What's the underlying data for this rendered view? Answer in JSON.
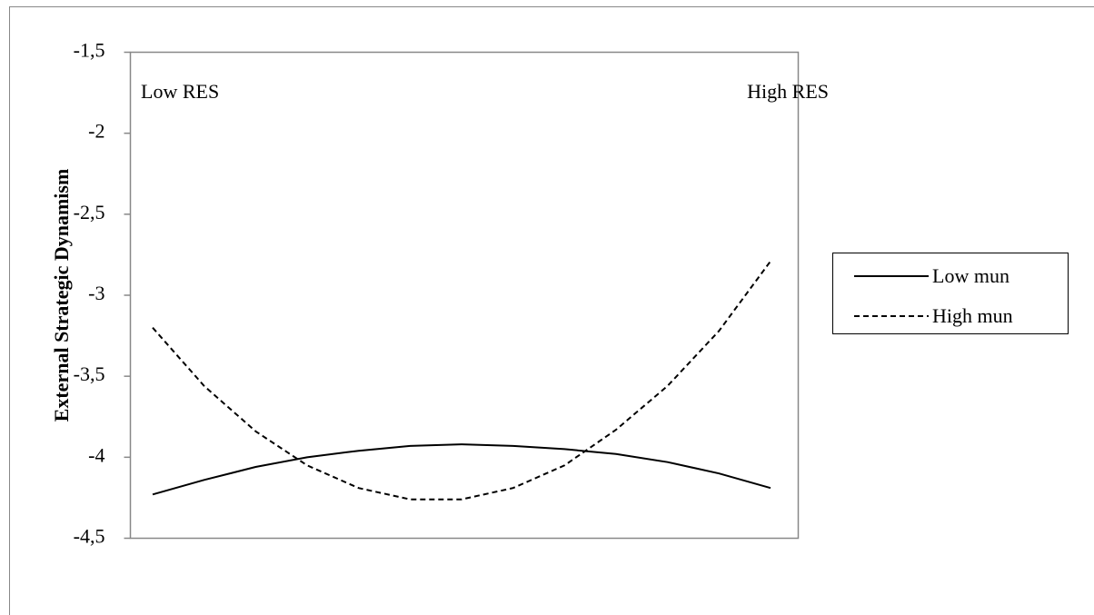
{
  "chart_data": {
    "type": "line",
    "y_label": "External Strategic Dynamism",
    "annotations": [
      "Low RES",
      "High RES"
    ],
    "categories": [
      null,
      null,
      null,
      null,
      null,
      null,
      null,
      null,
      null,
      null,
      null,
      null,
      null
    ],
    "series": [
      {
        "name": "Low mun",
        "color": "#000000",
        "dash": "solid",
        "values": [
          -4.23,
          -4.14,
          -4.06,
          -4.0,
          -3.96,
          -3.93,
          -3.92,
          -3.93,
          -3.95,
          -3.98,
          -4.03,
          -4.1,
          -4.19
        ]
      },
      {
        "name": "High mun",
        "color": "#000000",
        "dash": "dashed",
        "values": [
          -3.2,
          -3.56,
          -3.84,
          -4.05,
          -4.19,
          -4.26,
          -4.26,
          -4.19,
          -4.05,
          -3.83,
          -3.56,
          -3.22,
          -2.79
        ]
      }
    ],
    "ylim": [
      -4.5,
      -1.5
    ],
    "yticks": [
      {
        "value": -4.5,
        "label": "-4,5"
      },
      {
        "value": -4,
        "label": "-4"
      },
      {
        "value": -3.5,
        "label": "-3,5"
      },
      {
        "value": -3,
        "label": "-3"
      },
      {
        "value": -2.5,
        "label": "-2,5"
      },
      {
        "value": -2,
        "label": "-2"
      },
      {
        "value": -1.5,
        "label": "-1,5"
      }
    ],
    "legend": "right",
    "grid": false
  }
}
